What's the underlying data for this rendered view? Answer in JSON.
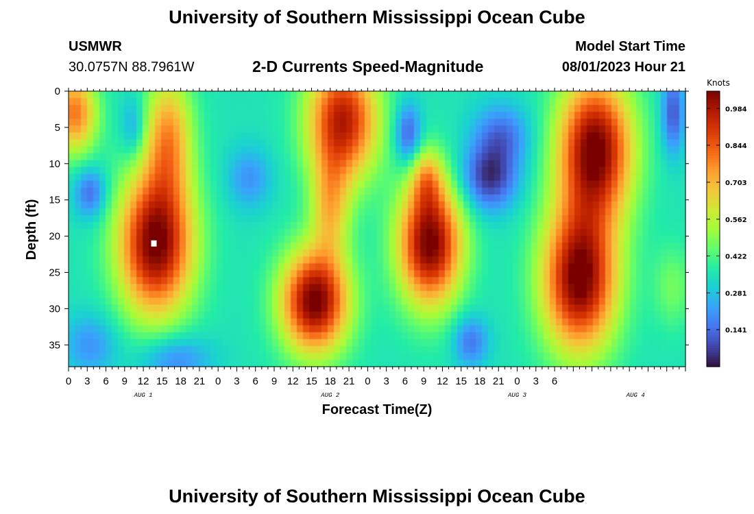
{
  "header": {
    "title": "University of Southern Mississippi Ocean Cube",
    "station": "USMWR",
    "coords": "30.0757N  88.7961W",
    "chart_title": "2-D Currents Speed-Magnitude",
    "model_label": "Model Start Time",
    "model_time": "08/01/2023 Hour 21"
  },
  "footer": {
    "title": "University of Southern Mississippi Ocean Cube"
  },
  "colors": {
    "ramp": [
      "#30123b",
      "#4145ab",
      "#4675ed",
      "#39a2fc",
      "#1bcfd4",
      "#24eca6",
      "#61fc6c",
      "#a4fc3b",
      "#d1e834",
      "#f3c63a",
      "#fe9b2d",
      "#f36315",
      "#d93806",
      "#b11901",
      "#7a0403"
    ],
    "marker": "#ffffff"
  },
  "chart_data": {
    "type": "heatmap",
    "title": "2-D Currents Speed-Magnitude",
    "xlabel": "Forecast Time(Z)",
    "ylabel": "Depth (ft)",
    "xlim": [
      0,
      99
    ],
    "ylim": [
      0,
      38
    ],
    "x_ticks": [
      "0",
      "3",
      "6",
      "9",
      "12",
      "15",
      "18",
      "21",
      "0",
      "3",
      "6",
      "9",
      "12",
      "15",
      "18",
      "21",
      "0",
      "3",
      "6",
      "9",
      "12",
      "15",
      "18",
      "21",
      "0",
      "3",
      "6"
    ],
    "y_ticks": [
      "0",
      "5",
      "10",
      "15",
      "20",
      "25",
      "30",
      "35"
    ],
    "y_tick_values": [
      0,
      5,
      10,
      15,
      20,
      25,
      30,
      35
    ],
    "day_labels": [
      {
        "label": "AUG 1",
        "hour": 12
      },
      {
        "label": "AUG 2",
        "hour": 42
      },
      {
        "label": "AUG 3",
        "hour": 72
      },
      {
        "label": "AUG 4",
        "hour": 91
      }
    ],
    "colorbar": {
      "label": "Knots",
      "vmin": 0,
      "vmax": 1.05,
      "ticks": [
        "0.984",
        "0.844",
        "0.703",
        "0.562",
        "0.422",
        "0.281",
        "0.141"
      ],
      "tick_values": [
        0.984,
        0.844,
        0.703,
        0.562,
        0.422,
        0.281,
        0.141
      ]
    },
    "marker": {
      "hour": 13.7,
      "depth": 21
    },
    "field": {
      "background": 0.35,
      "blobs": [
        {
          "h": 14,
          "d": 21,
          "sh": 4.2,
          "sd": 7,
          "a": 0.72
        },
        {
          "h": 16,
          "d": 6,
          "sh": 2.7,
          "sd": 6,
          "a": 0.38
        },
        {
          "h": 1,
          "d": 3,
          "sh": 2.5,
          "sd": 4,
          "a": 0.45
        },
        {
          "h": 3.5,
          "d": 14,
          "sh": 1.8,
          "sd": 2.5,
          "a": -0.22
        },
        {
          "h": 10.5,
          "d": 5,
          "sh": 1.4,
          "sd": 3,
          "a": -0.15
        },
        {
          "h": 3.5,
          "d": 35,
          "sh": 3,
          "sd": 3,
          "a": -0.15
        },
        {
          "h": 17,
          "d": 37,
          "sh": 4,
          "sd": 2.5,
          "a": -0.18
        },
        {
          "h": 29,
          "d": 12,
          "sh": 2.5,
          "sd": 3,
          "a": -0.15
        },
        {
          "h": 39.5,
          "d": 29,
          "sh": 3.8,
          "sd": 5,
          "a": 0.72
        },
        {
          "h": 44,
          "d": 4,
          "sh": 4,
          "sd": 6,
          "a": 0.62
        },
        {
          "h": 42,
          "d": 16,
          "sh": 2.2,
          "sd": 5,
          "a": 0.3
        },
        {
          "h": 54.5,
          "d": 6,
          "sh": 1.5,
          "sd": 3,
          "a": -0.25
        },
        {
          "h": 58,
          "d": 21,
          "sh": 3.6,
          "sd": 6,
          "a": 0.72
        },
        {
          "h": 57.5,
          "d": 12,
          "sh": 1.8,
          "sd": 3,
          "a": 0.25
        },
        {
          "h": 67.5,
          "d": 12,
          "sh": 3.2,
          "sd": 3.2,
          "a": -0.3
        },
        {
          "h": 69.5,
          "d": 6,
          "sh": 3.2,
          "sd": 3,
          "a": -0.2
        },
        {
          "h": 64.5,
          "d": 34.5,
          "sh": 2,
          "sd": 2.5,
          "a": -0.2
        },
        {
          "h": 84.5,
          "d": 8,
          "sh": 4.2,
          "sd": 7,
          "a": 0.72
        },
        {
          "h": 82,
          "d": 26,
          "sh": 4.2,
          "sd": 7,
          "a": 0.72
        },
        {
          "h": 97,
          "d": 3,
          "sh": 1.3,
          "sd": 4,
          "a": -0.25
        },
        {
          "h": 97,
          "d": 27,
          "sh": 2.2,
          "sd": 4,
          "a": 0.12
        }
      ]
    }
  }
}
